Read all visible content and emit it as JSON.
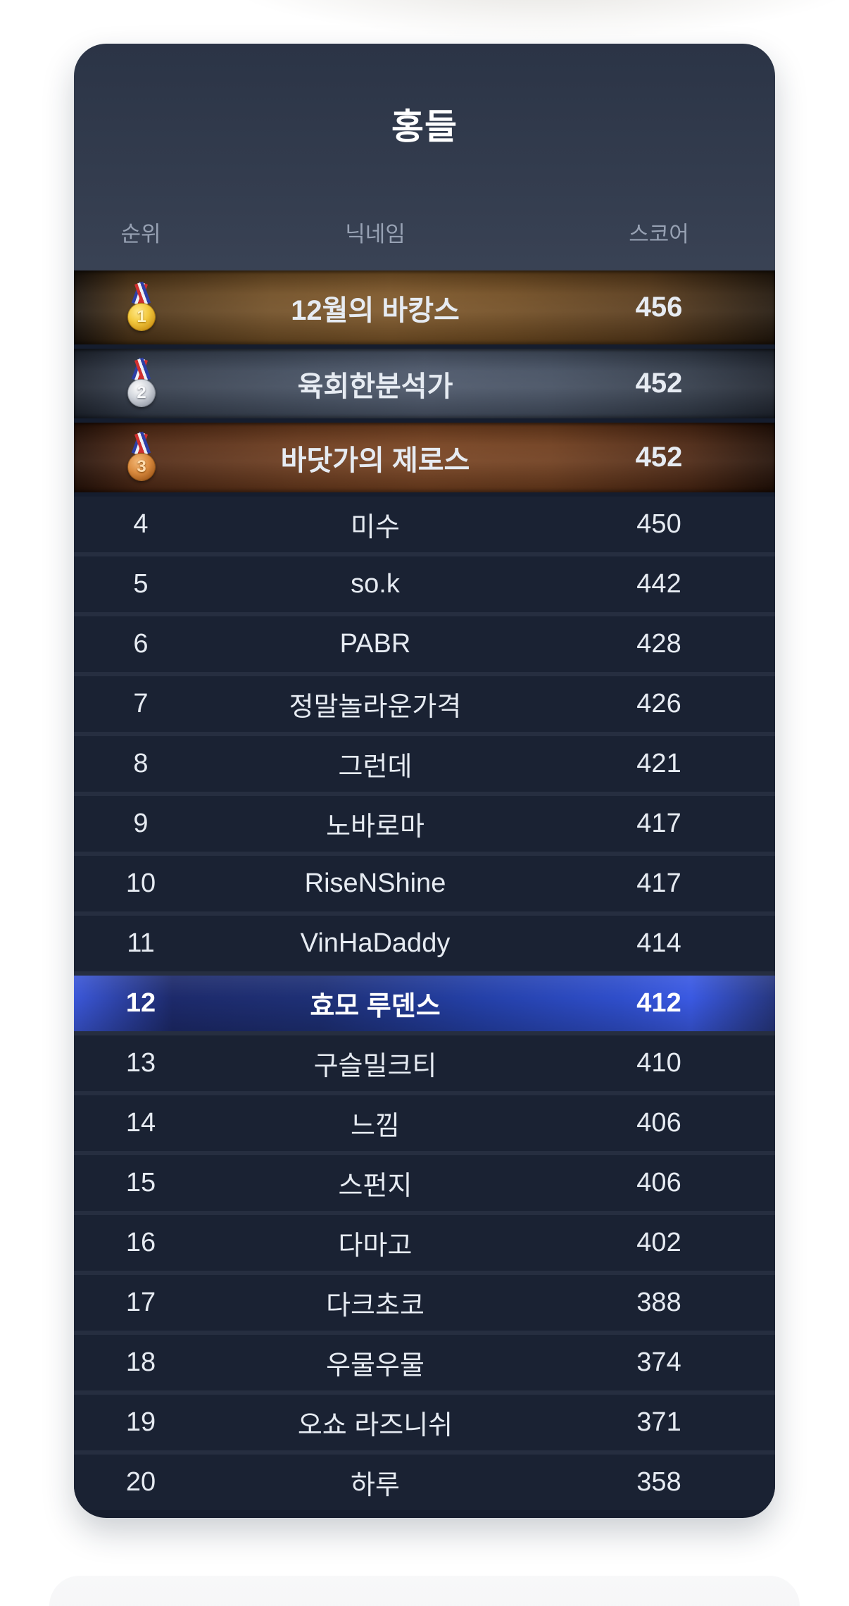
{
  "page": {
    "background": "#ffffff"
  },
  "leaderboard": {
    "title": "홍들",
    "columns": {
      "rank": "순위",
      "nickname": "닉네임",
      "score": "스코어"
    },
    "rows": [
      {
        "rank": "1",
        "nickname": "12월의 바캉스",
        "score": "456",
        "medal": "gold"
      },
      {
        "rank": "2",
        "nickname": "육회한분석가",
        "score": "452",
        "medal": "silver"
      },
      {
        "rank": "3",
        "nickname": "바닷가의 제로스",
        "score": "452",
        "medal": "bronze"
      },
      {
        "rank": "4",
        "nickname": "미수",
        "score": "450"
      },
      {
        "rank": "5",
        "nickname": "so.k",
        "score": "442"
      },
      {
        "rank": "6",
        "nickname": "PABR",
        "score": "428"
      },
      {
        "rank": "7",
        "nickname": "정말놀라운가격",
        "score": "426"
      },
      {
        "rank": "8",
        "nickname": "그런데",
        "score": "421"
      },
      {
        "rank": "9",
        "nickname": "노바로마",
        "score": "417"
      },
      {
        "rank": "10",
        "nickname": "RiseNShine",
        "score": "417"
      },
      {
        "rank": "11",
        "nickname": "VinHaDaddy",
        "score": "414"
      },
      {
        "rank": "12",
        "nickname": "효모 루덴스",
        "score": "412",
        "highlight": true
      },
      {
        "rank": "13",
        "nickname": "구슬밀크티",
        "score": "410"
      },
      {
        "rank": "14",
        "nickname": "느낌",
        "score": "406"
      },
      {
        "rank": "15",
        "nickname": "스펀지",
        "score": "406"
      },
      {
        "rank": "16",
        "nickname": "다마고",
        "score": "402"
      },
      {
        "rank": "17",
        "nickname": "다크초코",
        "score": "388"
      },
      {
        "rank": "18",
        "nickname": "우물우물",
        "score": "374"
      },
      {
        "rank": "19",
        "nickname": "오쇼 라즈니쉬",
        "score": "371"
      },
      {
        "rank": "20",
        "nickname": "하루",
        "score": "358"
      }
    ],
    "colors": {
      "card_header_bg": "#343d4f",
      "row_bg": "#1a2233",
      "row_text": "#e6ebf2",
      "header_text": "#97a1b3",
      "gold_row": "#7b5426",
      "silver_row": "#4a5568",
      "bronze_row": "#76411f",
      "highlight_row_blue": "#2f4ecb"
    }
  }
}
